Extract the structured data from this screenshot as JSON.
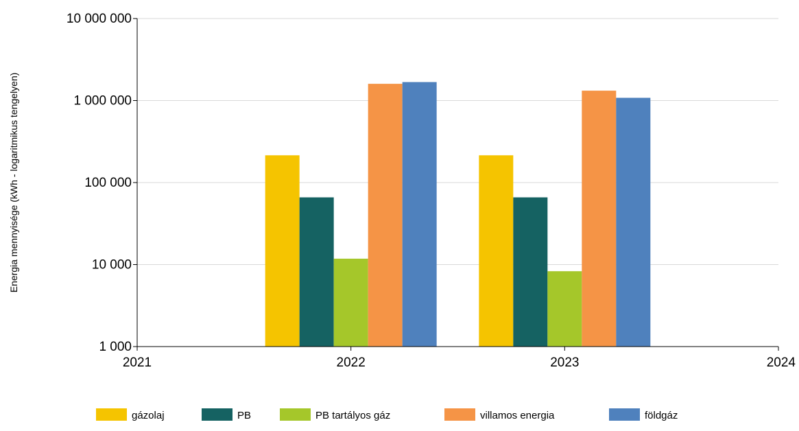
{
  "chart_data": {
    "type": "bar",
    "x_axis": {
      "ticks": [
        "2021",
        "2022",
        "2023",
        "2024"
      ],
      "range": [
        2021,
        2024
      ]
    },
    "y_axis": {
      "label": "Energia mennyisége (kWh - logaritmikus tengelyen)",
      "scale": "log",
      "range": [
        1000,
        10000000
      ],
      "ticks": [
        1000,
        10000,
        100000,
        1000000,
        10000000
      ],
      "tick_labels": [
        "1 000",
        "10 000",
        "100 000",
        "1 000 000",
        "10 000 000"
      ]
    },
    "grid": true,
    "legend": {
      "position": "bottom"
    },
    "categories": [
      "2022",
      "2023"
    ],
    "series": [
      {
        "name": "gázolaj",
        "color": "#F5C400",
        "values": [
          215000,
          215000
        ]
      },
      {
        "name": "PB",
        "color": "#156262",
        "values": [
          66000,
          66000
        ]
      },
      {
        "name": "PB tartályos gáz",
        "color": "#A5C72A",
        "values": [
          11800,
          8300
        ]
      },
      {
        "name": "villamos energia",
        "color": "#F59446",
        "values": [
          1600000,
          1320000
        ]
      },
      {
        "name": "földgáz",
        "color": "#4F81BD",
        "values": [
          1680000,
          1080000
        ]
      }
    ]
  }
}
